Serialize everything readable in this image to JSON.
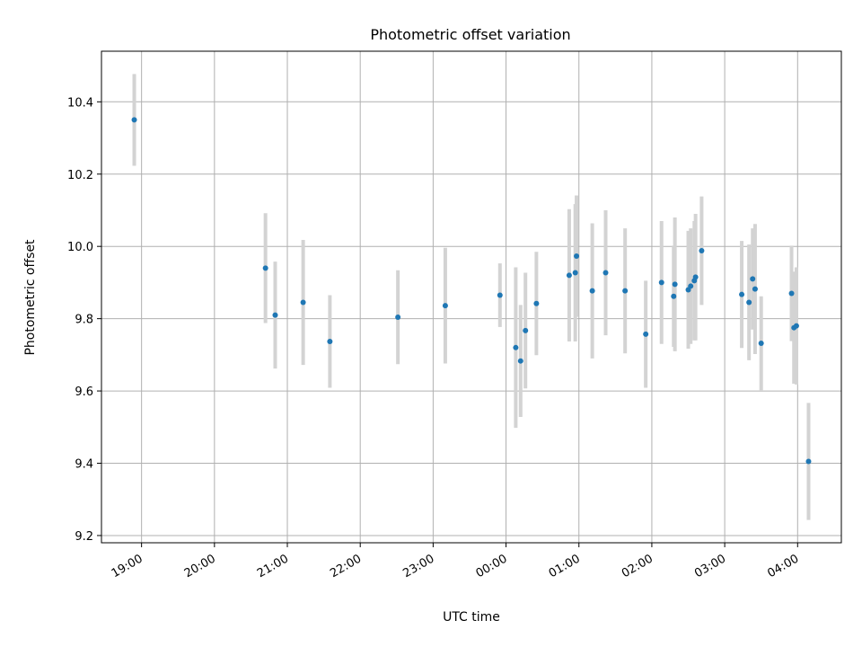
{
  "chart_data": {
    "type": "scatter",
    "title": "Photometric offset variation",
    "xlabel": "UTC time",
    "ylabel": "Photometric offset",
    "x_tick_labels": [
      "19:00",
      "20:00",
      "21:00",
      "22:00",
      "23:00",
      "00:00",
      "01:00",
      "02:00",
      "03:00",
      "04:00"
    ],
    "y_tick_labels": [
      "9.2",
      "9.4",
      "9.6",
      "9.8",
      "10.0",
      "10.2",
      "10.4"
    ],
    "x_tick_hours": [
      19,
      20,
      21,
      22,
      23,
      24,
      25,
      26,
      27,
      28
    ],
    "y_ticks": [
      9.2,
      9.4,
      9.6,
      9.8,
      10.0,
      10.2,
      10.4
    ],
    "xlim_hours": [
      18.45,
      28.6
    ],
    "ylim": [
      9.18,
      10.54
    ],
    "grid": true,
    "marker_color": "#1f77b4",
    "errorbar_color": "#d3d3d3",
    "points": [
      {
        "t": "18:54",
        "y": 10.35,
        "err": 0.127
      },
      {
        "t": "20:42",
        "y": 9.94,
        "err": 0.152
      },
      {
        "t": "20:50",
        "y": 9.81,
        "err": 0.148
      },
      {
        "t": "21:13",
        "y": 9.845,
        "err": 0.173
      },
      {
        "t": "21:35",
        "y": 9.737,
        "err": 0.128
      },
      {
        "t": "22:31",
        "y": 9.804,
        "err": 0.13
      },
      {
        "t": "23:10",
        "y": 9.836,
        "err": 0.16
      },
      {
        "t": "23:55",
        "y": 9.865,
        "err": 0.088
      },
      {
        "t": "00:08",
        "y": 9.72,
        "err": 0.222
      },
      {
        "t": "00:12",
        "y": 9.683,
        "err": 0.155
      },
      {
        "t": "00:16",
        "y": 9.767,
        "err": 0.16
      },
      {
        "t": "00:25",
        "y": 9.842,
        "err": 0.143
      },
      {
        "t": "00:52",
        "y": 9.92,
        "err": 0.183
      },
      {
        "t": "00:57",
        "y": 9.927,
        "err": 0.19
      },
      {
        "t": "00:58",
        "y": 9.973,
        "err": 0.168
      },
      {
        "t": "01:11",
        "y": 9.877,
        "err": 0.187
      },
      {
        "t": "01:22",
        "y": 9.927,
        "err": 0.173
      },
      {
        "t": "01:38",
        "y": 9.877,
        "err": 0.173
      },
      {
        "t": "01:55",
        "y": 9.757,
        "err": 0.148
      },
      {
        "t": "02:08",
        "y": 9.9,
        "err": 0.17
      },
      {
        "t": "02:18",
        "y": 9.862,
        "err": 0.14
      },
      {
        "t": "02:19",
        "y": 9.895,
        "err": 0.185
      },
      {
        "t": "02:30",
        "y": 9.88,
        "err": 0.163
      },
      {
        "t": "02:32",
        "y": 9.89,
        "err": 0.16
      },
      {
        "t": "02:35",
        "y": 9.905,
        "err": 0.165
      },
      {
        "t": "02:36",
        "y": 9.915,
        "err": 0.175
      },
      {
        "t": "02:41",
        "y": 9.988,
        "err": 0.15
      },
      {
        "t": "03:14",
        "y": 9.867,
        "err": 0.148
      },
      {
        "t": "03:20",
        "y": 9.845,
        "err": 0.16
      },
      {
        "t": "03:23",
        "y": 9.91,
        "err": 0.14
      },
      {
        "t": "03:25",
        "y": 9.882,
        "err": 0.18
      },
      {
        "t": "03:30",
        "y": 9.732,
        "err": 0.13
      },
      {
        "t": "03:55",
        "y": 9.87,
        "err": 0.132
      },
      {
        "t": "03:57",
        "y": 9.775,
        "err": 0.155
      },
      {
        "t": "03:59",
        "y": 9.78,
        "err": 0.162
      },
      {
        "t": "04:09",
        "y": 9.405,
        "err": 0.162
      }
    ]
  }
}
